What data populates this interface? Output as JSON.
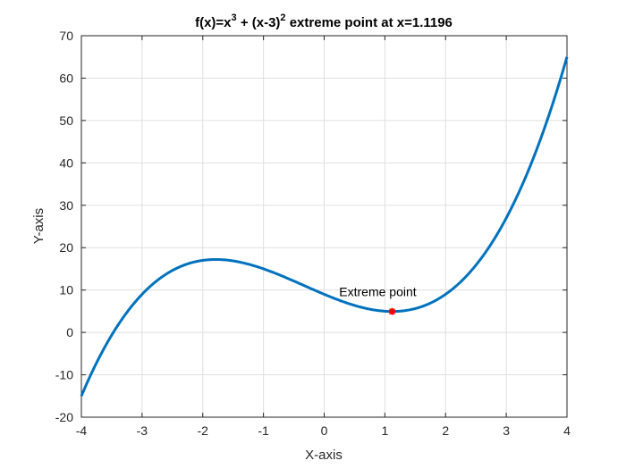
{
  "chart_data": {
    "type": "line",
    "title": {
      "p1": "f(x)=x",
      "sup1": "3",
      "p2": " + (x-3)",
      "sup2": "2",
      "p3": " extreme point at x=1.1196"
    },
    "xlabel": "X-axis",
    "ylabel": "Y-axis",
    "xlim": [
      -4,
      4
    ],
    "ylim": [
      -20,
      70
    ],
    "xticks": [
      -4,
      -3,
      -2,
      -1,
      0,
      1,
      2,
      3,
      4
    ],
    "yticks": [
      -20,
      -10,
      0,
      10,
      20,
      30,
      40,
      50,
      60,
      70
    ],
    "grid": true,
    "series": [
      {
        "function": "x^3 + (x-3)^2",
        "x_range": [
          -4,
          4
        ],
        "color": "#0072BD"
      }
    ],
    "marker": {
      "x": 1.1196,
      "y": 4.94,
      "color": "#FF0000",
      "label": "Extreme point"
    }
  }
}
